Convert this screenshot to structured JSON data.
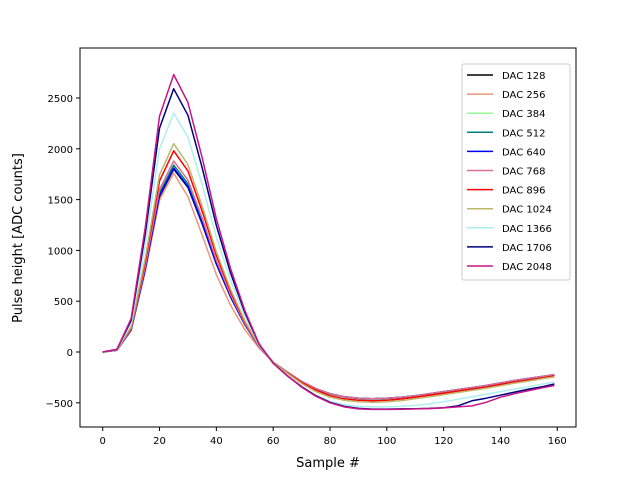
{
  "chart_data": {
    "type": "line",
    "title": "",
    "xlabel": "Sample #",
    "ylabel": "Pulse height [ADC counts]",
    "xlim": [
      -8,
      166.6
    ],
    "ylim": [
      -738,
      2992
    ],
    "xticks": [
      0,
      20,
      40,
      60,
      80,
      100,
      120,
      140,
      160
    ],
    "yticks": [
      -500,
      0,
      500,
      1000,
      1500,
      2000,
      2500
    ],
    "grid": false,
    "legend_position": "top-right",
    "x": [
      0,
      5,
      10,
      15,
      20,
      25,
      30,
      35,
      40,
      45,
      50,
      55,
      60,
      65,
      70,
      75,
      80,
      85,
      90,
      95,
      100,
      105,
      110,
      115,
      120,
      125,
      130,
      135,
      140,
      145,
      150,
      155,
      159
    ],
    "series": [
      {
        "name": "DAC 128",
        "color": "#000000",
        "values": [
          0,
          18,
          216,
          810,
          1530,
          1800,
          1620,
          1260,
          864,
          540,
          270,
          54,
          -100,
          -200,
          -290,
          -360,
          -410,
          -440,
          -455,
          -460,
          -455,
          -445,
          -430,
          -410,
          -390,
          -370,
          -350,
          -330,
          -305,
          -280,
          -260,
          -240,
          -225
        ]
      },
      {
        "name": "DAC 256",
        "color": "#e9967a",
        "values": [
          0,
          18,
          211,
          792,
          1496,
          1760,
          1530,
          1150,
          760,
          460,
          220,
          40,
          -100,
          -200,
          -290,
          -360,
          -410,
          -440,
          -455,
          -460,
          -455,
          -445,
          -430,
          -410,
          -390,
          -370,
          -350,
          -330,
          -305,
          -280,
          -260,
          -240,
          -222
        ]
      },
      {
        "name": "DAC 384",
        "color": "#98fb98",
        "values": [
          0,
          18,
          220,
          824,
          1556,
          1830,
          1647,
          1281,
          878,
          549,
          275,
          55,
          -100,
          -200,
          -292,
          -362,
          -412,
          -442,
          -458,
          -462,
          -458,
          -448,
          -432,
          -412,
          -392,
          -372,
          -352,
          -332,
          -307,
          -282,
          -262,
          -242,
          -228
        ]
      },
      {
        "name": "DAC 512",
        "color": "#008080",
        "values": [
          0,
          18,
          221,
          828,
          1564,
          1840,
          1656,
          1288,
          883,
          552,
          276,
          55,
          -100,
          -200,
          -292,
          -362,
          -412,
          -442,
          -458,
          -462,
          -458,
          -448,
          -432,
          -412,
          -392,
          -372,
          -352,
          -332,
          -307,
          -282,
          -262,
          -242,
          -228
        ]
      },
      {
        "name": "DAC 640",
        "color": "#0000ff",
        "values": [
          0,
          18,
          217,
          815,
          1539,
          1810,
          1629,
          1267,
          869,
          543,
          272,
          54,
          -100,
          -200,
          -290,
          -360,
          -410,
          -440,
          -455,
          -460,
          -455,
          -445,
          -430,
          -410,
          -390,
          -370,
          -350,
          -330,
          -305,
          -280,
          -260,
          -240,
          -222
        ]
      },
      {
        "name": "DAC 768",
        "color": "#db7093",
        "values": [
          0,
          19,
          226,
          846,
          1598,
          1880,
          1692,
          1316,
          902,
          564,
          282,
          56,
          -100,
          -200,
          -290,
          -360,
          -410,
          -440,
          -455,
          -460,
          -455,
          -445,
          -430,
          -410,
          -390,
          -370,
          -350,
          -330,
          -305,
          -280,
          -260,
          -240,
          -222
        ]
      },
      {
        "name": "DAC 896",
        "color": "#ff0000",
        "values": [
          0,
          20,
          238,
          891,
          1683,
          1980,
          1782,
          1386,
          950,
          594,
          297,
          59,
          -100,
          -205,
          -300,
          -375,
          -430,
          -460,
          -475,
          -480,
          -475,
          -462,
          -445,
          -425,
          -405,
          -385,
          -365,
          -345,
          -320,
          -295,
          -275,
          -255,
          -235
        ]
      },
      {
        "name": "DAC 1024",
        "color": "#bdb76b",
        "values": [
          0,
          21,
          246,
          923,
          1743,
          2050,
          1845,
          1435,
          984,
          615,
          308,
          62,
          -100,
          -210,
          -310,
          -390,
          -445,
          -475,
          -490,
          -495,
          -490,
          -478,
          -460,
          -440,
          -420,
          -398,
          -378,
          -356,
          -332,
          -306,
          -285,
          -262,
          -245
        ]
      },
      {
        "name": "DAC 1366",
        "color": "#afeeee",
        "values": [
          0,
          24,
          282,
          1058,
          1998,
          2350,
          2115,
          1645,
          1128,
          705,
          353,
          71,
          -110,
          -235,
          -340,
          -425,
          -485,
          -520,
          -535,
          -540,
          -540,
          -535,
          -525,
          -510,
          -490,
          -465,
          -440,
          -415,
          -390,
          -365,
          -340,
          -315,
          -295
        ]
      },
      {
        "name": "DAC 1706",
        "color": "#000080",
        "values": [
          0,
          26,
          311,
          1166,
          2202,
          2590,
          2331,
          1813,
          1243,
          777,
          389,
          78,
          -110,
          -235,
          -340,
          -430,
          -495,
          -535,
          -555,
          -562,
          -562,
          -560,
          -558,
          -555,
          -548,
          -530,
          -480,
          -455,
          -425,
          -395,
          -365,
          -340,
          -315
        ]
      },
      {
        "name": "DAC 2048",
        "color": "#c71585",
        "values": [
          0,
          27,
          328,
          1229,
          2321,
          2730,
          2457,
          1911,
          1310,
          819,
          410,
          82,
          -110,
          -235,
          -345,
          -435,
          -500,
          -540,
          -560,
          -565,
          -565,
          -563,
          -560,
          -557,
          -550,
          -540,
          -530,
          -495,
          -445,
          -410,
          -380,
          -350,
          -330
        ]
      }
    ]
  }
}
